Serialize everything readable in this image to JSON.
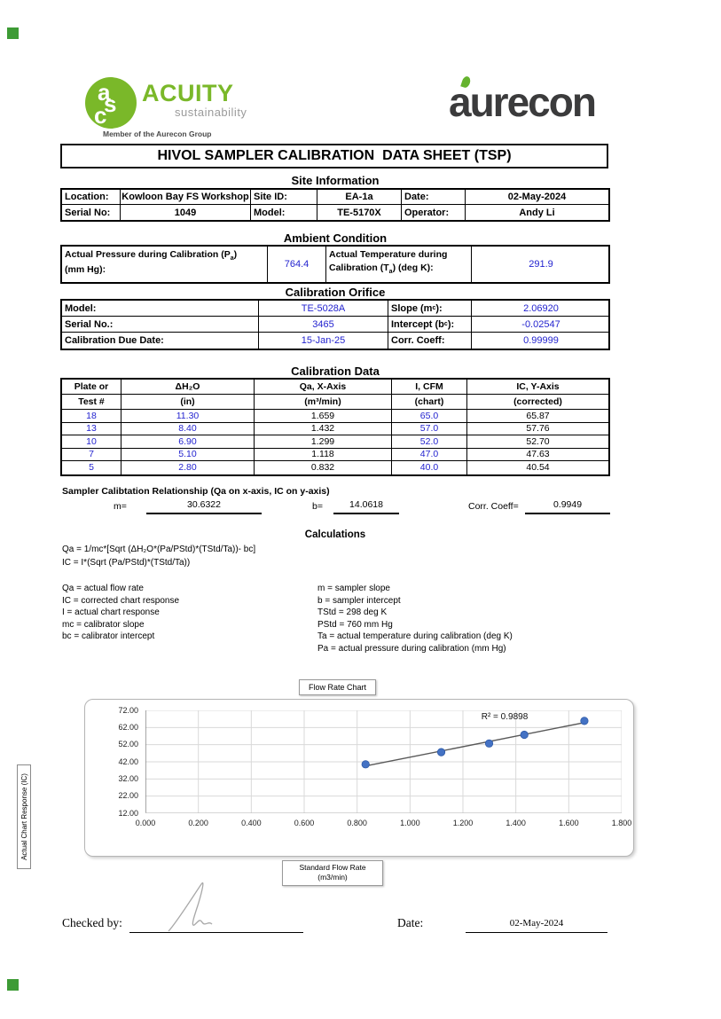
{
  "branding": {
    "acuity": {
      "circle_letters": [
        "a",
        "s",
        "c"
      ],
      "name": "ACUITY",
      "tagline": "sustainability",
      "member": "Member of the Aurecon Group",
      "green": "#7ab829"
    },
    "aurecon": {
      "wordmark": "aurecon",
      "dark": "#3b3b3c",
      "leaf_green": "#65b32e"
    }
  },
  "title": "HIVOL SAMPLER CALIBRATION  DATA SHEET (TSP)",
  "site_information": {
    "heading": "Site Information",
    "rows": [
      [
        {
          "label": "Location:",
          "value": "Kowloon Bay FS Workshop"
        },
        {
          "label": "Site ID:",
          "value": "EA-1a"
        },
        {
          "label": "Date:",
          "value": "02-May-2024"
        }
      ],
      [
        {
          "label": "Serial No:",
          "value": "1049"
        },
        {
          "label": "Model:",
          "value": "TE-5170X"
        },
        {
          "label": "Operator:",
          "value": "Andy Li"
        }
      ]
    ]
  },
  "ambient_condition": {
    "heading": "Ambient Condition",
    "pressure": {
      "line1_pre": "Actual Pressure during Calibration (P",
      "line1_sub": "a",
      "line1_post": ")",
      "line2": "(mm Hg):",
      "value": "764.4"
    },
    "temperature": {
      "line1": "Actual Temperature during",
      "line2_pre": "Calibration (T",
      "line2_sub": "a",
      "line2_post": ") (deg K):",
      "value": "291.9"
    }
  },
  "calibration_orifice": {
    "heading": "Calibration Orifice",
    "rows": [
      {
        "label": "Model:",
        "value": "TE-5028A",
        "label2_pre": "Slope (m",
        "label2_sub": "c",
        "label2_post": "):",
        "value2": "2.06920"
      },
      {
        "label": "Serial No.:",
        "value": "3465",
        "label2_pre": "Intercept (b",
        "label2_sub": "c",
        "label2_post": "):",
        "value2": "-0.02547"
      },
      {
        "label": "Calibration Due Date:",
        "value": "15-Jan-25",
        "label2_pre": "Corr. Coeff:",
        "label2_sub": "",
        "label2_post": "",
        "value2": "0.99999"
      }
    ]
  },
  "calibration_data": {
    "heading": "Calibration Data",
    "col_headers": [
      [
        "Plate or",
        "Test #"
      ],
      [
        "ΔH₂O",
        "(in)"
      ],
      [
        "Qa, X-Axis",
        "(m³/min)"
      ],
      [
        "I, CFM",
        "(chart)"
      ],
      [
        "IC, Y-Axis",
        "(corrected)"
      ]
    ],
    "rows": [
      [
        "18",
        "11.30",
        "1.659",
        "65.0",
        "65.87"
      ],
      [
        "13",
        "8.40",
        "1.432",
        "57.0",
        "57.76"
      ],
      [
        "10",
        "6.90",
        "1.299",
        "52.0",
        "52.70"
      ],
      [
        "7",
        "5.10",
        "1.118",
        "47.0",
        "47.63"
      ],
      [
        "5",
        "2.80",
        "0.832",
        "40.0",
        "40.54"
      ]
    ]
  },
  "relationship": {
    "label": "Sampler Calibtation Relationship (Qa on x-axis, IC on y-axis)",
    "m_label": "m=",
    "m_value": "30.6322",
    "b_label": "b=",
    "b_value": "14.0618",
    "corr_label": "Corr. Coeff=",
    "corr_value": "0.9949"
  },
  "calculations": {
    "heading": "Calculations",
    "formula1": "Qa = 1/mc*[Sqrt (ΔH₂O*(Pa/PStd)*(TStd/Ta))- bc]",
    "formula2": "IC = I*(Sqrt (Pa/PStd)*(TStd/Ta))",
    "defs_left": [
      "Qa = actual flow rate",
      "IC = corrected chart response",
      "I = actual chart response",
      "mc  = calibrator slope",
      "bc  = calibrator intercept"
    ],
    "defs_right": [
      "m = sampler slope",
      "b  = sampler intercept",
      "TStd = 298 deg K",
      "PStd = 760 mm Hg",
      "Ta = actual temperature during calibration (deg K)",
      "Pa = actual pressure during calibration (mm Hg)"
    ]
  },
  "chart_data": {
    "type": "scatter",
    "title": "Flow Rate Chart",
    "ylabel": "Actual Chart Response (IC)",
    "xlabel": "Standard Flow Rate (m3/min)",
    "xlabel_line1": "Standard Flow Rate",
    "xlabel_line2": "(m3/min)",
    "x": [
      0.832,
      1.118,
      1.299,
      1.432,
      1.659
    ],
    "y": [
      40.54,
      47.63,
      52.7,
      57.76,
      65.87
    ],
    "xlim": [
      0,
      1.8
    ],
    "ylim": [
      12,
      72
    ],
    "x_ticks": [
      "0.000",
      "0.200",
      "0.400",
      "0.600",
      "0.800",
      "1.000",
      "1.200",
      "1.400",
      "1.600",
      "1.800"
    ],
    "y_ticks": [
      "72.00",
      "62.00",
      "52.00",
      "42.00",
      "32.00",
      "22.00",
      "12.00"
    ],
    "trendline": {
      "slope": 30.6322,
      "intercept": 14.0618,
      "x_start": 0.832,
      "x_end": 1.659
    },
    "annotation": "R² = 0.9898",
    "marker_color": "#4472c4",
    "marker_edge": "#2e5aa7",
    "trend_color": "#595959",
    "grid": true,
    "legend": "none"
  },
  "footer": {
    "checked_by_label": "Checked by:",
    "date_label": "Date:",
    "date_value": "02-May-2024"
  },
  "colors": {
    "value_blue": "#2323cf",
    "corner_green": "#3d9b35"
  }
}
